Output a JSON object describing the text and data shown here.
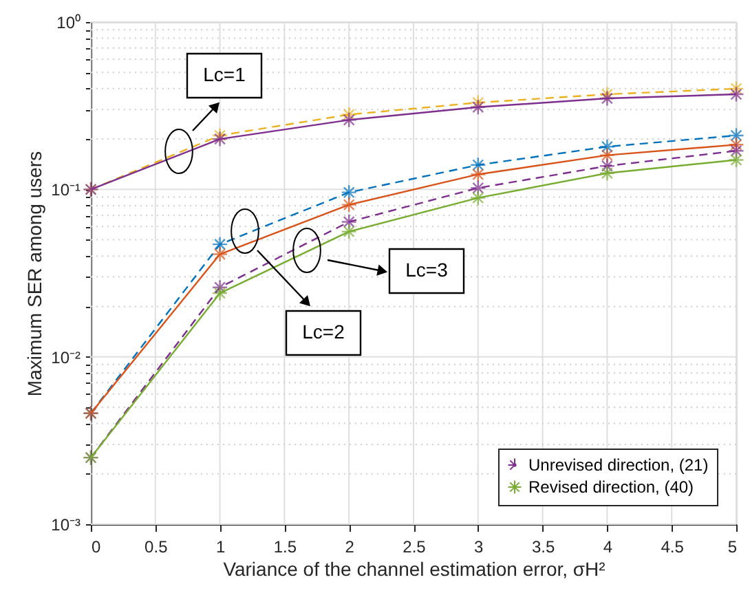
{
  "chart_data": {
    "type": "line",
    "xlabel": "Variance of the channel estimation error, σH²",
    "ylabel": "Maximum SER among users",
    "x": [
      0,
      1,
      2,
      3,
      4,
      5
    ],
    "series": [
      {
        "color": "#edb120",
        "line_style": "dashed",
        "values": [
          0.1,
          0.21,
          0.28,
          0.33,
          0.37,
          0.4
        ]
      },
      {
        "color": "#7e2f8e",
        "line_style": "solid",
        "values": [
          0.1,
          0.2,
          0.26,
          0.31,
          0.35,
          0.37
        ]
      },
      {
        "color": "#0072bd",
        "line_style": "dashed",
        "values": [
          0.0046,
          0.047,
          0.096,
          0.14,
          0.18,
          0.21
        ]
      },
      {
        "color": "#d95319",
        "line_style": "solid",
        "values": [
          0.0046,
          0.041,
          0.081,
          0.123,
          0.16,
          0.185
        ]
      },
      {
        "name": "Unrevised direction, (21)",
        "color": "#7e2f8e",
        "line_style": "dashed",
        "values": [
          0.0025,
          0.026,
          0.064,
          0.102,
          0.138,
          0.17
        ]
      },
      {
        "name": "Revised direction, (40)",
        "color": "#77ac30",
        "line_style": "solid",
        "values": [
          0.0025,
          0.024,
          0.056,
          0.089,
          0.125,
          0.15
        ]
      }
    ],
    "log": true,
    "xlim": [
      0,
      5
    ],
    "xticks": [
      0,
      0.5,
      1,
      1.5,
      2,
      2.5,
      3,
      3.5,
      4,
      4.5,
      5
    ],
    "ylim": [
      0.001,
      1
    ],
    "yticks": [
      {
        "value": 0.001,
        "label": "10⁻³"
      },
      {
        "value": 0.002,
        "label": null
      },
      {
        "value": 0.003,
        "label": null
      },
      {
        "value": 0.004,
        "label": null
      },
      {
        "value": 0.005,
        "label": null
      },
      {
        "value": 0.006,
        "label": null
      },
      {
        "value": 0.007,
        "label": null
      },
      {
        "value": 0.008,
        "label": null
      },
      {
        "value": 0.009,
        "label": null
      },
      {
        "value": 0.01,
        "label": "10⁻²"
      },
      {
        "value": 0.02,
        "label": null
      },
      {
        "value": 0.03,
        "label": null
      },
      {
        "value": 0.04,
        "label": null
      },
      {
        "value": 0.05,
        "label": null
      },
      {
        "value": 0.06,
        "label": null
      },
      {
        "value": 0.07,
        "label": null
      },
      {
        "value": 0.08,
        "label": null
      },
      {
        "value": 0.09,
        "label": null
      },
      {
        "value": 0.1,
        "label": "10⁻¹"
      },
      {
        "value": 0.2,
        "label": null
      },
      {
        "value": 0.3,
        "label": null
      },
      {
        "value": 0.4,
        "label": null
      },
      {
        "value": 0.5,
        "label": null
      },
      {
        "value": 0.6,
        "label": null
      },
      {
        "value": 0.7,
        "label": null
      },
      {
        "value": 0.8,
        "label": null
      },
      {
        "value": 0.9,
        "label": null
      },
      {
        "value": 1,
        "label": "10⁰"
      }
    ],
    "grid": true,
    "legend": "bottom right",
    "marker": "cross",
    "annotations": [
      "Lc=1",
      "Lc=2",
      "Lc=3"
    ]
  }
}
